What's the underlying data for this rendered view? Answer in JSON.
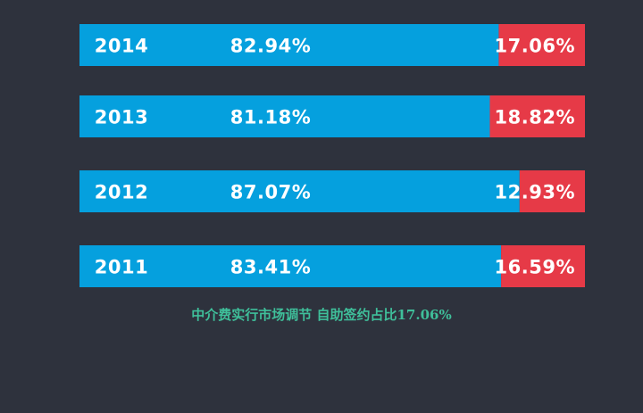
{
  "chart_data": {
    "type": "bar",
    "orientation": "horizontal",
    "stacked": true,
    "percent": true,
    "categories": [
      "2014",
      "2013",
      "2012",
      "2011"
    ],
    "series": [
      {
        "values": [
          82.94,
          81.18,
          87.07,
          83.41
        ],
        "labels": [
          "82.94%",
          "81.18%",
          "87.07%",
          "83.41%"
        ],
        "color": "#05a0de"
      },
      {
        "values": [
          17.06,
          18.82,
          12.93,
          16.59
        ],
        "labels": [
          "17.06%",
          "18.82%",
          "12.93%",
          "16.59%"
        ],
        "color": "#e63a47"
      }
    ],
    "xlim": [
      0,
      100
    ],
    "grid": false,
    "legend": "none"
  },
  "caption": "中介费实行市场调节 自助签约占比17.06%",
  "colors": {
    "background": "#2e323d",
    "caption": "#3fbf9a",
    "label": "#ffffff"
  }
}
